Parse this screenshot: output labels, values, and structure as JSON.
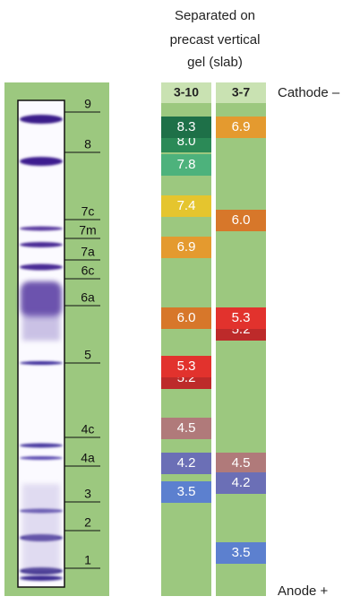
{
  "header": {
    "lines": [
      "Separated on",
      "precast vertical",
      "gel (slab)"
    ]
  },
  "gel": {
    "labels": [
      "9",
      "8",
      "7c",
      "7m",
      "7a",
      "6c",
      "6a",
      "5",
      "4c",
      "4a",
      "3",
      "2",
      "1"
    ]
  },
  "columns": [
    {
      "title": "3-10",
      "bands": [
        "8.0",
        "8.3",
        "7.8",
        "7.4",
        "6.9",
        "6.0",
        "5.2",
        "5.3",
        "4.5",
        "4.2",
        "3.5"
      ]
    },
    {
      "title": "3-7",
      "bands": [
        "6.9",
        "6.0",
        "5.2",
        "5.3",
        "4.5",
        "4.2",
        "3.5"
      ]
    }
  ],
  "cathode": "Cathode –",
  "anode": "Anode +"
}
